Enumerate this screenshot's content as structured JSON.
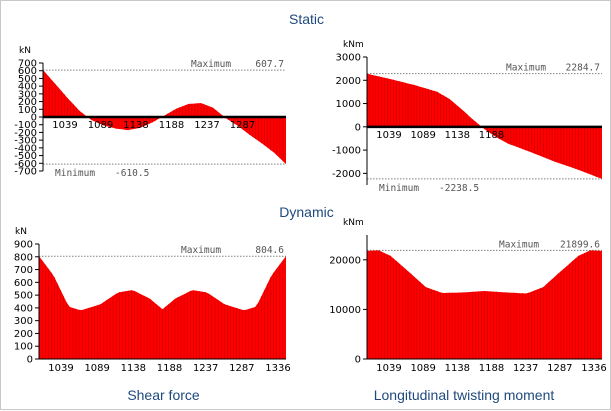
{
  "headings": {
    "static": "Static",
    "dynamic": "Dynamic"
  },
  "captions": {
    "shear": "Shear force",
    "twist": "Longitudinal twisting moment"
  },
  "colors": {
    "fill": "#ff0000",
    "stripe": "#c80000",
    "axis": "#000000",
    "ref": "#808080"
  },
  "chart_data": [
    {
      "id": "static-shear",
      "type": "area",
      "unit": "kN",
      "ylim": [
        -700,
        700
      ],
      "yticks": [
        700,
        600,
        500,
        400,
        300,
        200,
        100,
        0,
        -100,
        -200,
        -300,
        -400,
        -500,
        -600,
        -700
      ],
      "xticks": [
        "1039",
        "1089",
        "1138",
        "1188",
        "1237",
        "1287"
      ],
      "xtick_row": "zero",
      "max_label": "Maximum",
      "max_value": 607.7,
      "min_label": "Minimum",
      "min_value": -610.5,
      "ref_values": [
        607.7,
        -610.5
      ],
      "points": [
        [
          0,
          610
        ],
        [
          0.05,
          430
        ],
        [
          0.1,
          250
        ],
        [
          0.15,
          80
        ],
        [
          0.2,
          -40
        ],
        [
          0.25,
          -110
        ],
        [
          0.3,
          -150
        ],
        [
          0.35,
          -170
        ],
        [
          0.4,
          -140
        ],
        [
          0.45,
          -70
        ],
        [
          0.5,
          20
        ],
        [
          0.55,
          110
        ],
        [
          0.6,
          170
        ],
        [
          0.65,
          180
        ],
        [
          0.7,
          120
        ],
        [
          0.75,
          -10
        ],
        [
          0.8,
          -110
        ],
        [
          0.85,
          -230
        ],
        [
          0.9,
          -340
        ],
        [
          0.95,
          -460
        ],
        [
          1,
          -610
        ]
      ]
    },
    {
      "id": "static-twist",
      "type": "area",
      "unit": "kNm",
      "ylim": [
        -2500,
        3000
      ],
      "yticks": [
        3000,
        2000,
        1000,
        0,
        -1000,
        -2000
      ],
      "xticks": [
        "1039",
        "1089",
        "1138",
        "1188"
      ],
      "xtick_row": "zero",
      "max_label": "Maximum",
      "max_value": 2284.7,
      "min_label": "Minimum",
      "min_value": -2238.5,
      "ref_values": [
        2284.7,
        -2238.5
      ],
      "points": [
        [
          0,
          2280
        ],
        [
          0.1,
          2050
        ],
        [
          0.2,
          1800
        ],
        [
          0.3,
          1500
        ],
        [
          0.35,
          1200
        ],
        [
          0.4,
          780
        ],
        [
          0.45,
          320
        ],
        [
          0.5,
          -100
        ],
        [
          0.55,
          -450
        ],
        [
          0.6,
          -720
        ],
        [
          0.7,
          -1100
        ],
        [
          0.8,
          -1500
        ],
        [
          0.9,
          -1850
        ],
        [
          1,
          -2240
        ]
      ]
    },
    {
      "id": "dynamic-shear",
      "type": "area",
      "unit": "kN",
      "ylim": [
        0,
        900
      ],
      "yticks": [
        900,
        800,
        700,
        600,
        500,
        400,
        300,
        200,
        100,
        0
      ],
      "xticks": [
        "1039",
        "1089",
        "1138",
        "1188",
        "1237",
        "1287",
        "1336"
      ],
      "xtick_row": "bottom",
      "max_label": "Maximum",
      "max_value": 804.6,
      "ref_values": [
        804.6
      ],
      "points": [
        [
          0,
          805
        ],
        [
          0.06,
          650
        ],
        [
          0.12,
          410
        ],
        [
          0.17,
          380
        ],
        [
          0.25,
          430
        ],
        [
          0.32,
          520
        ],
        [
          0.38,
          540
        ],
        [
          0.45,
          470
        ],
        [
          0.5,
          390
        ],
        [
          0.55,
          470
        ],
        [
          0.62,
          540
        ],
        [
          0.68,
          520
        ],
        [
          0.75,
          430
        ],
        [
          0.83,
          380
        ],
        [
          0.88,
          410
        ],
        [
          0.94,
          650
        ],
        [
          1,
          805
        ]
      ]
    },
    {
      "id": "dynamic-twist",
      "type": "area",
      "unit": "kNm",
      "ylim": [
        0,
        25000
      ],
      "yticks": [
        20000,
        10000,
        0
      ],
      "xticks": [
        "1039",
        "1089",
        "1138",
        "1188",
        "1237",
        "1287",
        "1336"
      ],
      "xtick_row": "bottom",
      "max_label": "Maximum",
      "max_value": 21899.6,
      "ref_values": [
        21899.6
      ],
      "points": [
        [
          0,
          21800
        ],
        [
          0.05,
          21900
        ],
        [
          0.1,
          20800
        ],
        [
          0.18,
          17500
        ],
        [
          0.25,
          14500
        ],
        [
          0.32,
          13300
        ],
        [
          0.4,
          13400
        ],
        [
          0.5,
          13700
        ],
        [
          0.6,
          13400
        ],
        [
          0.68,
          13200
        ],
        [
          0.75,
          14500
        ],
        [
          0.82,
          17500
        ],
        [
          0.9,
          20800
        ],
        [
          0.95,
          21900
        ],
        [
          1,
          21800
        ]
      ]
    }
  ]
}
